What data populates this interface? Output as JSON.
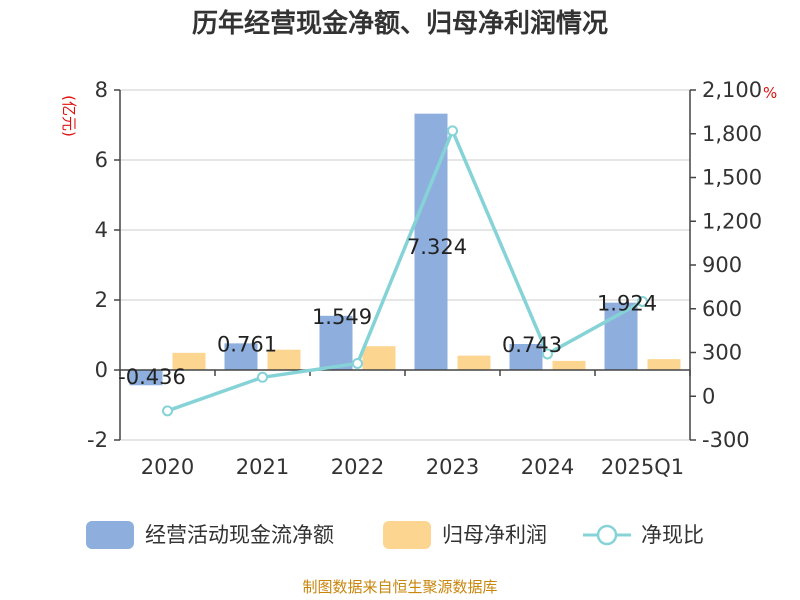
{
  "chart_data": {
    "type": "bar",
    "title": "历年经营现金净额、归母净利润情况",
    "categories": [
      "2020",
      "2021",
      "2022",
      "2023",
      "2024",
      "2025Q1"
    ],
    "left_axis": {
      "unit": "(亿元)",
      "ylim": [
        -2,
        8
      ],
      "ticks": [
        "-2",
        "0",
        "2",
        "4",
        "6",
        "8"
      ]
    },
    "right_axis": {
      "unit": "%",
      "ylim": [
        -300,
        2100
      ],
      "ticks": [
        "-300",
        "0",
        "300",
        "600",
        "900",
        "1,200",
        "1,500",
        "1,800",
        "2,100"
      ]
    },
    "series": [
      {
        "name": "经营活动现金流净额",
        "kind": "bar",
        "axis": "left",
        "color": "#8eaedd",
        "values": [
          -0.436,
          0.761,
          1.549,
          7.324,
          0.743,
          1.924
        ],
        "labels": [
          "-0.436",
          "0.761",
          "1.549",
          "7.324",
          "0.743",
          "1.924"
        ]
      },
      {
        "name": "归母净利润",
        "kind": "bar",
        "axis": "left",
        "color": "#fcd591",
        "values": [
          0.49,
          0.58,
          0.68,
          0.41,
          0.26,
          0.31
        ]
      },
      {
        "name": "净现比",
        "kind": "line",
        "axis": "right",
        "color": "#86d3d7",
        "values": [
          -100,
          130,
          225,
          1820,
          290,
          650
        ]
      }
    ],
    "grid": true,
    "legend": "bottom",
    "source": "制图数据来自恒生聚源数据库"
  }
}
